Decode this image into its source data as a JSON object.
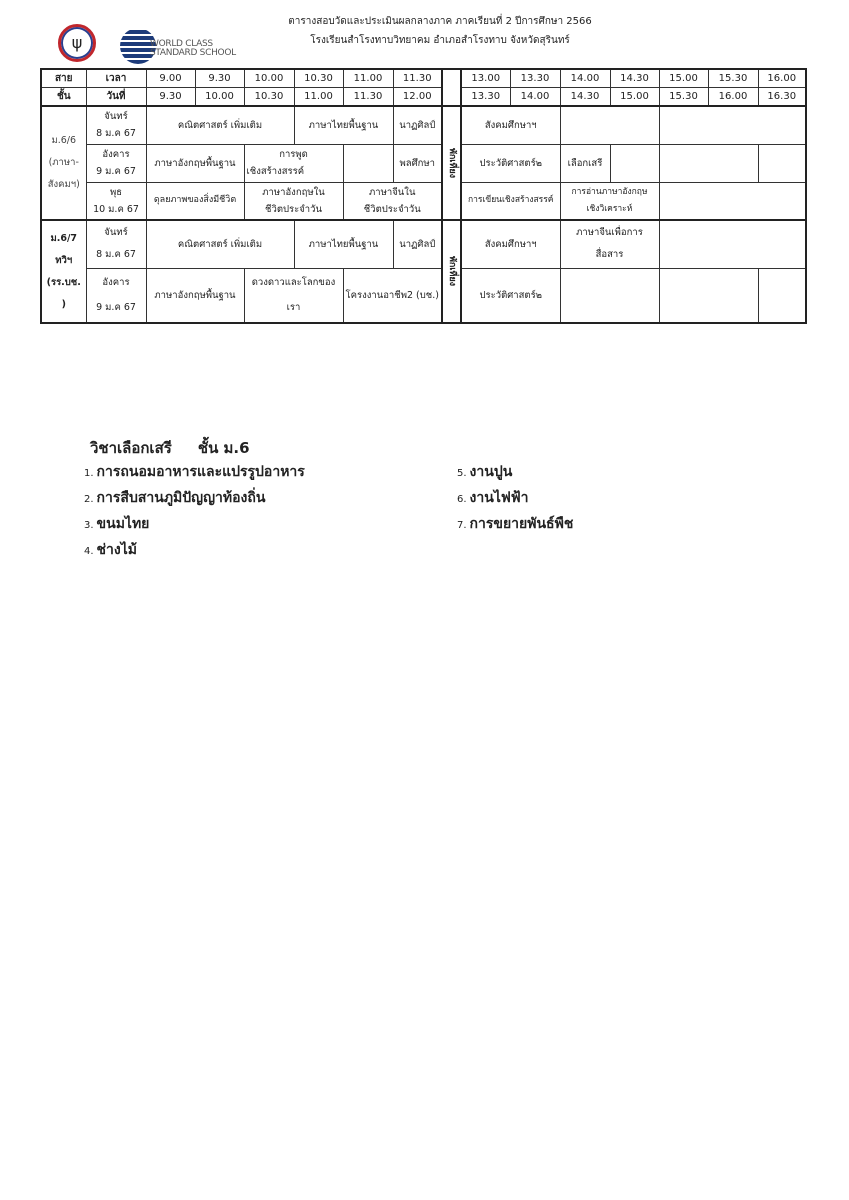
{
  "header": {
    "title_line1": "ตารางสอบวัดและประเมินผลกลางภาค ภาคเรียนที่ 2  ปีการศึกษา 2566",
    "title_line2": "โรงเรียนสำโรงทาบวิทยาคม อำเภอสำโรงทาบ  จังหวัดสุรินทร์",
    "logo2_text": "WORLD CLASS STANDARD SCHOOL"
  },
  "table": {
    "h_class1": "สาย",
    "h_class2": "ชั้น",
    "h_time": "เวลา",
    "h_date": "วันที่",
    "start_times": [
      "9.00",
      "9.30",
      "10.00",
      "10.30",
      "11.00",
      "11.30",
      "13.00",
      "13.30",
      "14.00",
      "14.30",
      "15.00",
      "15.30",
      "16.00"
    ],
    "end_times": [
      "9.30",
      "10.00",
      "10.30",
      "11.00",
      "11.30",
      "12.00",
      "13.30",
      "14.00",
      "14.30",
      "15.00",
      "15.30",
      "16.00",
      "16.30"
    ],
    "lunch": "พักเที่ยง",
    "groups": [
      {
        "class_label": "ม.6/6\n(ภาษา-\nสังคมฯ)",
        "rows": [
          {
            "day": "จันทร์",
            "date": "8 ม.ค 67",
            "cells": [
              "คณิตศาสตร์ เพิ่มเติม",
              "ภาษาไทยพื้นฐาน",
              "นาฏศิลป์",
              "สังคมศึกษาฯ"
            ]
          },
          {
            "day": "อังคาร",
            "date": "9 ม.ค 67",
            "cells": [
              "ภาษาอังกฤษพื้นฐาน",
              "การพูด",
              "เชิงสร้างสรรค์",
              "พลศึกษา",
              "ประวัติศาสตร์๒",
              "เลือกเสรี"
            ]
          },
          {
            "day": "พุธ",
            "date": "10 ม.ค 67",
            "cells": [
              "ดุลยภาพของสิ่งมีชีวิต",
              "ภาษาอังกฤษใน",
              "ชีวิตประจำวัน",
              "ภาษาจีนใน",
              "ชีวิตประจำวัน",
              "การเขียนเชิงสร้างสรรค์",
              "การอ่านภาษาอังกฤษ",
              "เชิงวิเคราะห์"
            ]
          }
        ]
      },
      {
        "class_label": "ม.6/7\nทวิฯ\n(รร.บช.\n)",
        "rows": [
          {
            "day": "จันทร์",
            "date": "8 ม.ค 67",
            "cells": [
              "คณิตศาสตร์ เพิ่มเติม",
              "ภาษาไทยพื้นฐาน",
              "นาฏศิลป์",
              "สังคมศึกษาฯ",
              "ภาษาจีนเพื่อการ",
              "สื่อสาร"
            ]
          },
          {
            "day": "อังคาร",
            "date": "9 ม.ค 67",
            "cells": [
              "ภาษาอังกฤษพื้นฐาน",
              "ดวงดาวและโลกของ",
              "เรา",
              "โครงงานอาชีพ2 (บช.)",
              "ประวัติศาสตร์๒"
            ]
          }
        ]
      }
    ]
  },
  "electives": {
    "heading": "วิชาเลือกเสรี     ชั้น ม.6",
    "items": [
      {
        "n": "1.",
        "label": "การถนอมอาหารและแปรรูปอาหาร"
      },
      {
        "n": "2.",
        "label": "การสืบสานภูมิปัญญาท้องถิ่น"
      },
      {
        "n": "3.",
        "label": "ขนมไทย"
      },
      {
        "n": "4.",
        "label": "ช่างไม้"
      },
      {
        "n": "5.",
        "label": "งานปูน"
      },
      {
        "n": "6.",
        "label": "งานไฟฟ้า"
      },
      {
        "n": "7.",
        "label": "การขยายพันธ์พืช"
      }
    ]
  }
}
